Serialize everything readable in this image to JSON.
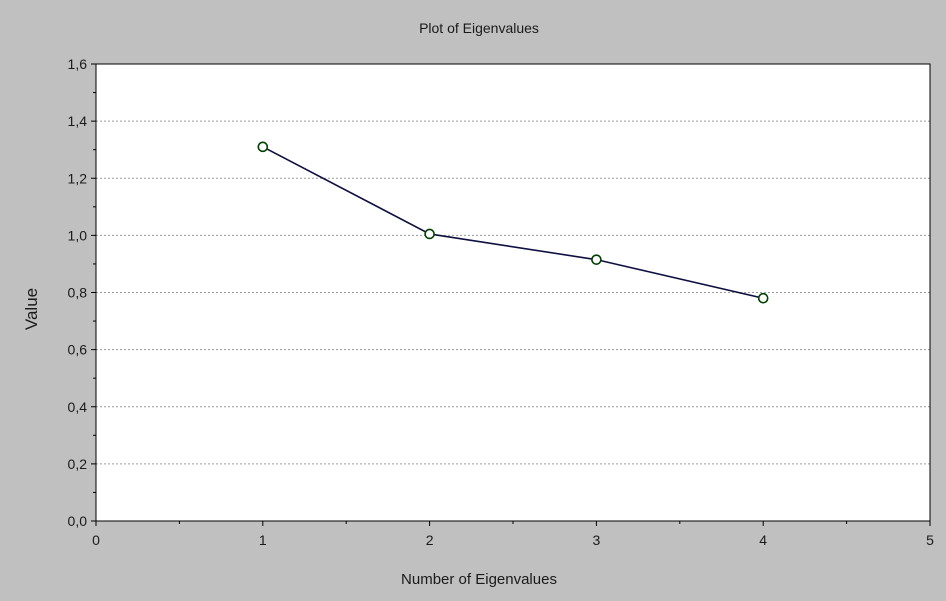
{
  "chart_data": {
    "type": "line",
    "title": "Plot of Eigenvalues",
    "xlabel": "Number of Eigenvalues",
    "ylabel": "Value",
    "xlim": [
      0,
      5
    ],
    "ylim": [
      0,
      1.6
    ],
    "x_ticks": [
      0,
      1,
      2,
      3,
      4,
      5
    ],
    "y_ticks": [
      0,
      0.2,
      0.4,
      0.6,
      0.8,
      1.0,
      1.2,
      1.4,
      1.6
    ],
    "x_tick_labels": [
      "0",
      "1",
      "2",
      "3",
      "4",
      "5"
    ],
    "y_tick_labels": [
      "0,0",
      "0,2",
      "0,4",
      "0,6",
      "0,8",
      "1,0",
      "1,2",
      "1,4",
      "1,6"
    ],
    "grid": "horizontal dashed",
    "background_color": "#c0c0c0",
    "plot_background_color": "#ffffff",
    "series": [
      {
        "x": [
          1,
          2,
          3,
          4
        ],
        "y": [
          1.31,
          1.005,
          0.915,
          0.78
        ],
        "line_color": "#101040",
        "marker_edge_color": "#004000",
        "marker_fill_color": "#ffffff",
        "marker": "circle"
      }
    ]
  }
}
